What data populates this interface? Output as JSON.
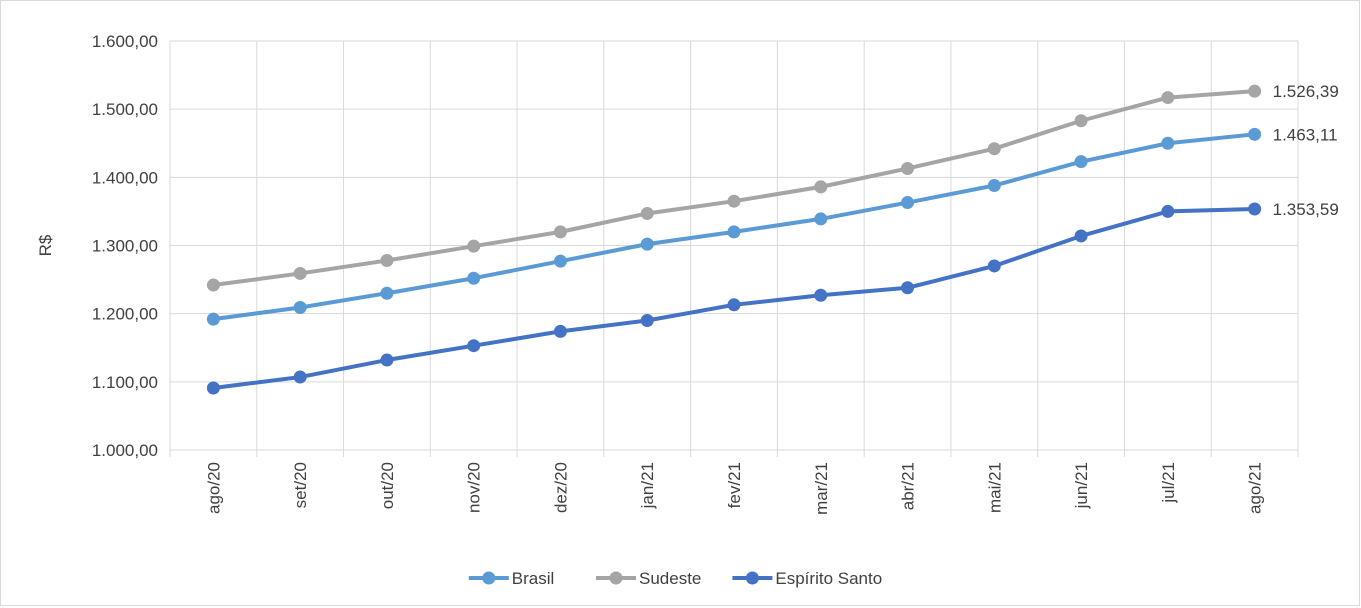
{
  "chart_data": {
    "type": "line",
    "title": "",
    "xlabel": "",
    "ylabel": "R$",
    "ylim": [
      1000,
      1600
    ],
    "yticks": [
      1000,
      1100,
      1200,
      1300,
      1400,
      1500,
      1600
    ],
    "ytick_labels": [
      "1.000,00",
      "1.100,00",
      "1.200,00",
      "1.300,00",
      "1.400,00",
      "1.500,00",
      "1.600,00"
    ],
    "categories": [
      "ago/20",
      "set/20",
      "out/20",
      "nov/20",
      "dez/20",
      "jan/21",
      "fev/21",
      "mar/21",
      "abr/21",
      "mai/21",
      "jun/21",
      "jul/21",
      "ago/21"
    ],
    "grid": true,
    "legend_position": "bottom",
    "series": [
      {
        "name": "Brasil",
        "color": "#5b9bd5",
        "values": [
          1192,
          1209,
          1230,
          1252,
          1277,
          1302,
          1320,
          1339,
          1363,
          1388,
          1423,
          1450,
          1463.11
        ],
        "end_label": "1.463,11"
      },
      {
        "name": "Sudeste",
        "color": "#a5a5a5",
        "values": [
          1242,
          1259,
          1278,
          1299,
          1320,
          1347,
          1365,
          1386,
          1413,
          1442,
          1483,
          1517,
          1526.39
        ],
        "end_label": "1.526,39"
      },
      {
        "name": "Espírito Santo",
        "color": "#4472c4",
        "values": [
          1091,
          1107,
          1132,
          1153,
          1174,
          1190,
          1213,
          1227,
          1238,
          1270,
          1314,
          1350,
          1353.59
        ],
        "end_label": "1.353,59"
      }
    ]
  }
}
